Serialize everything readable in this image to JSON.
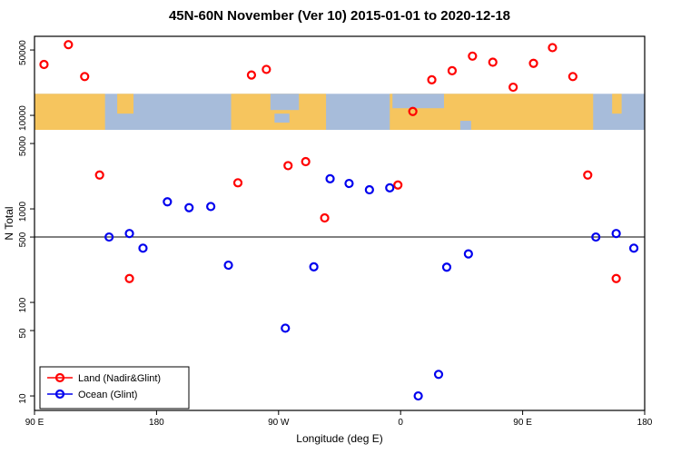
{
  "chart_data": {
    "type": "scatter",
    "title": "45N-60N November (Ver 10)   2015-01-01 to 2020-12-18",
    "xlabel": "Longitude (deg E)",
    "ylabel": "N Total",
    "xlim": [
      90,
      540
    ],
    "ylim": [
      7,
      70000
    ],
    "y_log": true,
    "x_ticks": [
      {
        "value": 90,
        "label": "90 E"
      },
      {
        "value": 180,
        "label": "180"
      },
      {
        "value": 270,
        "label": "90 W"
      },
      {
        "value": 360,
        "label": "0"
      },
      {
        "value": 450,
        "label": "90 E"
      },
      {
        "value": 540,
        "label": "180"
      }
    ],
    "y_ticks": [
      10,
      50,
      100,
      500,
      1000,
      5000,
      10000,
      50000
    ],
    "refline_y": 500,
    "map_band": {
      "value_top": 17000,
      "value_bottom": 7000,
      "ocean_color": "#A7BCDA",
      "land_color": "#F6C55E",
      "land_segments": [
        {
          "from": 90,
          "to": 142,
          "t": 0,
          "b": 1
        },
        {
          "from": 151,
          "to": 163,
          "t": 0,
          "b": 0.55
        },
        {
          "from": 235,
          "to": 305,
          "t": 0,
          "b": 1
        },
        {
          "from": 352,
          "to": 502,
          "t": 0,
          "b": 1
        },
        {
          "from": 516,
          "to": 523,
          "t": 0,
          "b": 0.55
        }
      ],
      "water_overlays": [
        {
          "from": 264,
          "to": 285,
          "t": 0,
          "b": 0.45
        },
        {
          "from": 267,
          "to": 278,
          "t": 0.55,
          "b": 0.8
        },
        {
          "from": 354,
          "to": 392,
          "t": 0,
          "b": 0.4
        },
        {
          "from": 404,
          "to": 412,
          "t": 0.75,
          "b": 1
        }
      ]
    },
    "series": [
      {
        "name": "Land (Nadir&Glint)",
        "color": "#FF0000",
        "points": [
          [
            97,
            35000
          ],
          [
            115,
            57000
          ],
          [
            127,
            26000
          ],
          [
            138,
            2300
          ],
          [
            160,
            180
          ],
          [
            240,
            1900
          ],
          [
            250,
            27000
          ],
          [
            261,
            31000
          ],
          [
            277,
            2900
          ],
          [
            290,
            3200
          ],
          [
            304,
            800
          ],
          [
            358,
            1800
          ],
          [
            369,
            11000
          ],
          [
            383,
            24000
          ],
          [
            398,
            30000
          ],
          [
            413,
            43000
          ],
          [
            428,
            37000
          ],
          [
            443,
            20000
          ],
          [
            458,
            36000
          ],
          [
            472,
            53000
          ],
          [
            487,
            26000
          ],
          [
            498,
            2300
          ],
          [
            519,
            180
          ]
        ]
      },
      {
        "name": "Ocean (Glint)",
        "color": "#0000EE",
        "points": [
          [
            145,
            500
          ],
          [
            160,
            545
          ],
          [
            170,
            380
          ],
          [
            188,
            1190
          ],
          [
            204,
            1030
          ],
          [
            220,
            1060
          ],
          [
            233,
            250
          ],
          [
            275,
            53
          ],
          [
            296,
            240
          ],
          [
            308,
            2100
          ],
          [
            322,
            1870
          ],
          [
            337,
            1600
          ],
          [
            352,
            1680
          ],
          [
            373,
            10
          ],
          [
            388,
            17
          ],
          [
            394,
            238
          ],
          [
            410,
            330
          ],
          [
            504,
            500
          ],
          [
            519,
            545
          ],
          [
            532,
            380
          ]
        ]
      }
    ],
    "legend_position": "bottom-left"
  }
}
